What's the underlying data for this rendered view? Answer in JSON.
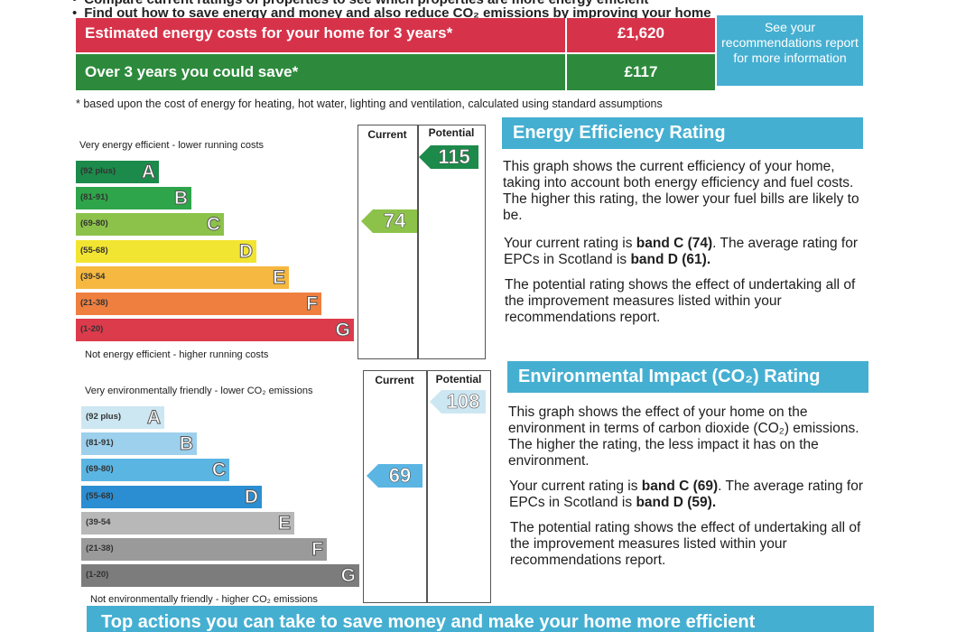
{
  "bullets": {
    "line1": "Compare current ratings of properties to see which properties are more energy efficient",
    "line2": "Find out how to save energy and money and also reduce CO₂ emissions by improving your home"
  },
  "costs": {
    "estimated_label": "Estimated energy costs for your home for 3 years*",
    "estimated_value": "£1,620",
    "save_label": "Over 3 years you could save*",
    "save_value": "£117",
    "see_recommendations": "See your recommendations report for more information",
    "footnote": "* based upon the cost of energy for heating, hot water, lighting and ventilation, calculated using standard assumptions"
  },
  "energy_chart": {
    "col_current": "Current",
    "col_potential": "Potential",
    "top_caption": "Very energy efficient - lower running costs",
    "bottom_caption": "Not energy efficient - higher running costs",
    "current": "74",
    "potential": "115",
    "bands": [
      {
        "range": "(92 plus)",
        "letter": "A",
        "color": "#1c8a4a"
      },
      {
        "range": "(81-91)",
        "letter": "B",
        "color": "#2ea54a"
      },
      {
        "range": "(69-80)",
        "letter": "C",
        "color": "#8cc24a"
      },
      {
        "range": "(55-68)",
        "letter": "D",
        "color": "#f2e531"
      },
      {
        "range": "(39-54",
        "letter": "E",
        "color": "#f6b840"
      },
      {
        "range": "(21-38)",
        "letter": "F",
        "color": "#ee7f3f"
      },
      {
        "range": "(1-20)",
        "letter": "G",
        "color": "#dc3b4c"
      }
    ],
    "current_color": "#8cc24a",
    "potential_color": "#1c8a4a"
  },
  "env_chart": {
    "col_current": "Current",
    "col_potential": "Potential",
    "top_caption": "Very environmentally friendly - lower CO₂ emissions",
    "bottom_caption": "Not environmentally friendly - higher CO₂ emissions",
    "current": "69",
    "potential": "108",
    "bands": [
      {
        "range": "(92 plus)",
        "letter": "A",
        "color": "#cde7f2"
      },
      {
        "range": "(81-91)",
        "letter": "B",
        "color": "#9cd0ec"
      },
      {
        "range": "(69-80)",
        "letter": "C",
        "color": "#5bb5e3"
      },
      {
        "range": "(55-68)",
        "letter": "D",
        "color": "#2b8ed2"
      },
      {
        "range": "(39-54",
        "letter": "E",
        "color": "#b8b8b8"
      },
      {
        "range": "(21-38)",
        "letter": "F",
        "color": "#9a9a9a"
      },
      {
        "range": "(1-20)",
        "letter": "G",
        "color": "#7c7c7c"
      }
    ],
    "current_color": "#5bb5e3",
    "potential_color": "#cde7f2"
  },
  "energy_panel": {
    "title": "Energy Efficiency Rating",
    "p1": "This graph shows the current efficiency of your home, taking into account both energy efficiency and fuel costs. The higher this rating, the lower your fuel bills are likely to be.",
    "p2_pre": "Your current rating is ",
    "p2_band": "band C (74)",
    "p2_mid": ". The average rating for EPCs in Scotland is ",
    "p2_avg": "band D (61).",
    "p3": "The potential rating shows the effect of undertaking all of the improvement measures listed within your recommendations report."
  },
  "env_panel": {
    "title": "Environmental Impact (CO₂) Rating",
    "p1": "This graph shows the effect of your home on the environment in terms of carbon dioxide (CO₂) emissions. The higher the rating, the less impact it has on the environment.",
    "p2_pre": "Your current rating is ",
    "p2_band": "band C (69)",
    "p2_mid": ". The average rating for EPCs in Scotland is ",
    "p2_avg": "band D (59).",
    "p3": "The potential rating shows the effect of undertaking all of the improvement measures listed within your recommendations report."
  },
  "bottom_banner": "Top actions you can take to save money and make your home more efficient"
}
